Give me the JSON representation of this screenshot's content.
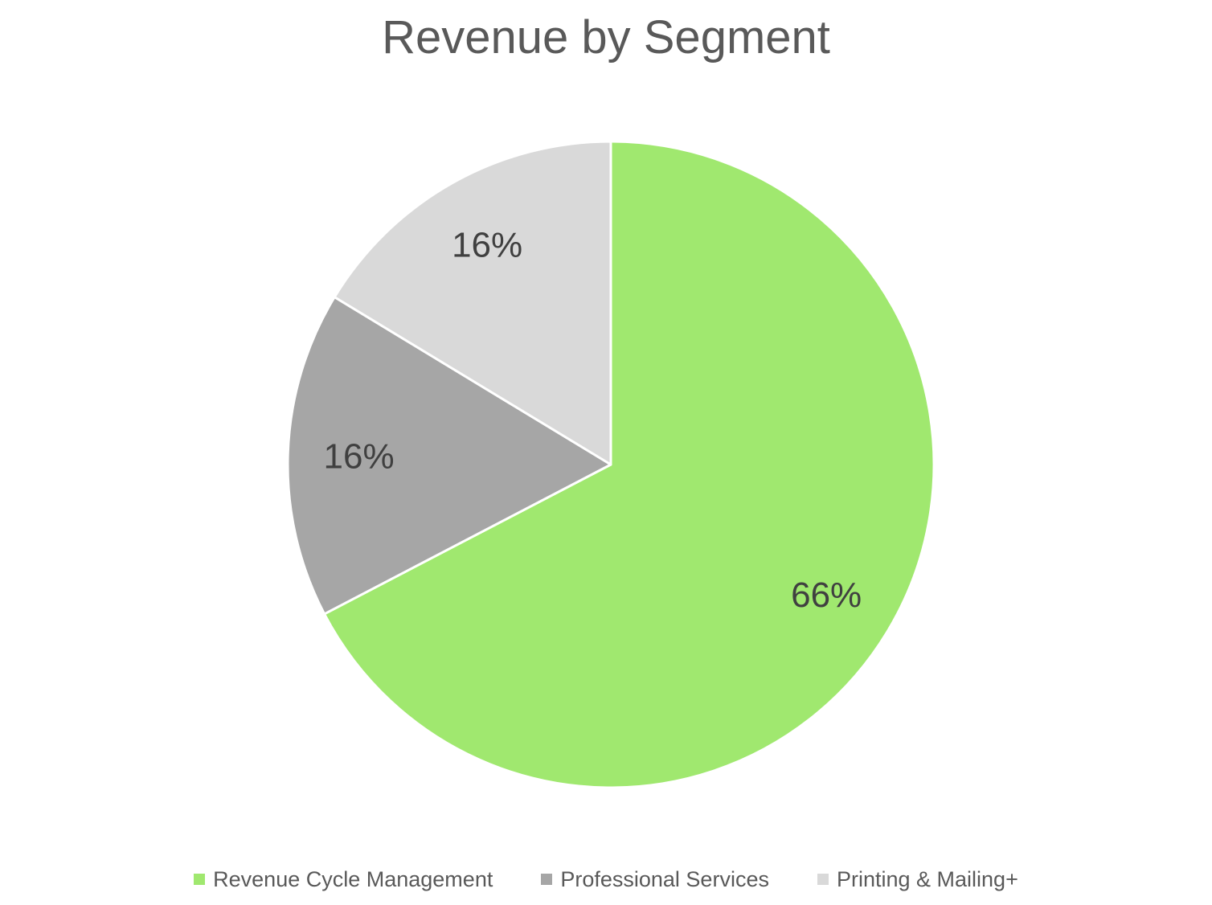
{
  "chart_data": {
    "type": "pie",
    "title": "Revenue by Segment",
    "legend_position": "bottom",
    "slices": [
      {
        "name": "Revenue Cycle Management",
        "value": 66,
        "label": "66%",
        "color": "#a0e86f"
      },
      {
        "name": "Professional Services",
        "value": 16,
        "label": "16%",
        "color": "#a6a6a6"
      },
      {
        "name": "Printing & Mailing+",
        "value": 16,
        "label": "16%",
        "color": "#d9d9d9"
      }
    ]
  }
}
